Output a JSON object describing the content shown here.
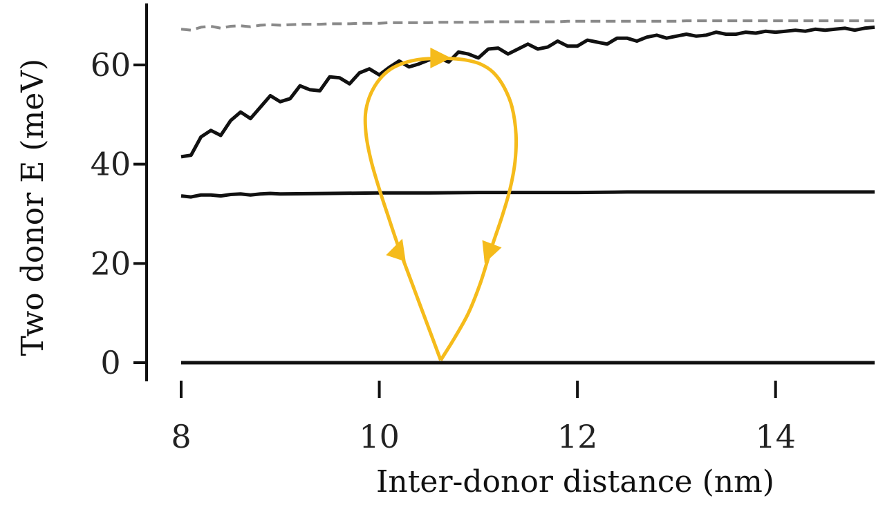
{
  "chart_data": {
    "type": "line",
    "xlabel": "Inter-donor distance (nm)",
    "ylabel": "Two donor E (meV)",
    "xlim": [
      8,
      15
    ],
    "ylim": [
      -3,
      72
    ],
    "x_ticks": [
      {
        "value": 8,
        "label": "8"
      },
      {
        "value": 10,
        "label": "10"
      },
      {
        "value": 12,
        "label": "12"
      },
      {
        "value": 14,
        "label": "14"
      }
    ],
    "y_ticks": [
      {
        "value": 0,
        "label": "0"
      },
      {
        "value": 20,
        "label": "20"
      },
      {
        "value": 40,
        "label": "40"
      },
      {
        "value": 60,
        "label": "60"
      }
    ],
    "grid": false,
    "legend": "none",
    "series": [
      {
        "style": "solid",
        "color": "#111111",
        "x": [
          8.0,
          8.1,
          8.2,
          8.3,
          8.4,
          8.5,
          8.6,
          8.7,
          8.8,
          8.9,
          9.0,
          9.1,
          9.2,
          9.3,
          9.4,
          9.5,
          9.6,
          9.7,
          9.8,
          9.9,
          10.0,
          10.1,
          10.2,
          10.3,
          10.4,
          10.5,
          10.6,
          10.7,
          10.8,
          10.9,
          11.0,
          11.1,
          11.2,
          11.3,
          11.4,
          11.5,
          11.6,
          11.7,
          11.8,
          11.9,
          12.0,
          12.1,
          12.2,
          12.3,
          12.4,
          12.5,
          12.6,
          12.7,
          12.8,
          12.9,
          13.0,
          13.1,
          13.2,
          13.3,
          13.4,
          13.5,
          13.6,
          13.7,
          13.8,
          13.9,
          14.0,
          14.1,
          14.2,
          14.3,
          14.4,
          14.5,
          14.6,
          14.7,
          14.8,
          14.9,
          15.0
        ],
        "y": [
          41.5,
          41.8,
          45.5,
          46.8,
          45.8,
          48.8,
          50.5,
          49.2,
          51.5,
          53.8,
          52.6,
          53.2,
          55.8,
          55.0,
          54.8,
          57.6,
          57.4,
          56.2,
          58.4,
          59.2,
          58.0,
          59.5,
          60.8,
          59.6,
          60.2,
          61.0,
          61.4,
          60.6,
          62.6,
          62.2,
          61.4,
          63.2,
          63.4,
          62.2,
          63.2,
          64.2,
          63.2,
          63.6,
          64.8,
          63.8,
          63.8,
          65.0,
          64.6,
          64.2,
          65.4,
          65.4,
          64.8,
          65.6,
          66.0,
          65.4,
          65.8,
          66.2,
          65.8,
          66.0,
          66.6,
          66.2,
          66.2,
          66.6,
          66.4,
          66.8,
          66.6,
          66.8,
          67.0,
          66.8,
          67.2,
          67.0,
          67.2,
          67.4,
          67.0,
          67.4,
          67.6
        ]
      },
      {
        "style": "dashed",
        "color": "#8a8a8a",
        "x": [
          8.0,
          8.1,
          8.2,
          8.3,
          8.4,
          8.5,
          8.6,
          8.7,
          8.8,
          8.9,
          9.0,
          9.1,
          9.2,
          9.3,
          9.4,
          9.5,
          9.6,
          9.7,
          9.8,
          9.9,
          10.0,
          10.1,
          10.2,
          10.3,
          10.4,
          10.5,
          10.6,
          10.7,
          10.8,
          10.9,
          11.0,
          11.1,
          11.2,
          11.3,
          11.4,
          11.5,
          11.6,
          11.7,
          11.8,
          11.9,
          12.0,
          12.1,
          12.2,
          12.3,
          12.4,
          12.5,
          12.6,
          12.7,
          12.8,
          12.9,
          13.0,
          13.1,
          13.2,
          13.3,
          13.4,
          13.5,
          13.6,
          13.7,
          13.8,
          13.9,
          14.0,
          14.1,
          14.2,
          14.3,
          14.4,
          14.5,
          14.6,
          14.7,
          14.8,
          14.9,
          15.0
        ],
        "y": [
          67.2,
          67.0,
          67.6,
          67.8,
          67.4,
          67.8,
          67.9,
          67.7,
          68.0,
          68.1,
          68.0,
          68.1,
          68.2,
          68.2,
          68.2,
          68.3,
          68.3,
          68.3,
          68.4,
          68.4,
          68.4,
          68.5,
          68.5,
          68.5,
          68.5,
          68.5,
          68.6,
          68.6,
          68.6,
          68.6,
          68.6,
          68.7,
          68.7,
          68.7,
          68.7,
          68.7,
          68.7,
          68.7,
          68.7,
          68.8,
          68.8,
          68.8,
          68.8,
          68.8,
          68.8,
          68.8,
          68.8,
          68.8,
          68.8,
          68.8,
          68.8,
          68.9,
          68.9,
          68.9,
          68.9,
          68.9,
          68.9,
          68.9,
          68.9,
          68.9,
          68.9,
          68.9,
          68.9,
          68.9,
          68.9,
          68.9,
          68.9,
          68.9,
          68.9,
          68.9,
          68.9
        ]
      },
      {
        "style": "solid",
        "color": "#111111",
        "x": [
          8.0,
          8.1,
          8.2,
          8.3,
          8.4,
          8.5,
          8.6,
          8.7,
          8.8,
          8.9,
          9.0,
          9.5,
          10.0,
          10.5,
          11.0,
          11.5,
          12.0,
          12.5,
          13.0,
          13.5,
          14.0,
          14.5,
          15.0
        ],
        "y": [
          33.6,
          33.4,
          33.8,
          33.8,
          33.6,
          33.9,
          34.0,
          33.8,
          34.0,
          34.1,
          34.0,
          34.1,
          34.2,
          34.2,
          34.3,
          34.3,
          34.3,
          34.4,
          34.4,
          34.4,
          34.4,
          34.4,
          34.4
        ]
      },
      {
        "style": "solid",
        "color": "#111111",
        "x": [
          8.0,
          15.0
        ],
        "y": [
          0.0,
          0.0
        ]
      }
    ],
    "annotation_loop": {
      "color": "#f5bb1b",
      "x": [
        10.62,
        10.48,
        10.33,
        10.2,
        10.09,
        10.0,
        9.92,
        9.87,
        9.86,
        9.9,
        9.98,
        10.09,
        10.22,
        10.37,
        10.52,
        10.62,
        10.72,
        10.87,
        11.02,
        11.15,
        11.26,
        11.34,
        11.38,
        11.37,
        11.32,
        11.24,
        11.13,
        11.02,
        10.9,
        10.76,
        10.62
      ],
      "y": [
        0.5,
        8.0,
        16.0,
        23.0,
        29.5,
        35.0,
        40.5,
        45.5,
        50.0,
        53.5,
        56.5,
        58.8,
        60.2,
        61.0,
        61.3,
        61.4,
        61.3,
        61.0,
        60.2,
        58.5,
        55.5,
        51.5,
        46.0,
        40.5,
        35.0,
        29.5,
        23.0,
        16.0,
        10.0,
        5.0,
        0.5
      ],
      "arrows": [
        {
          "x": 10.2,
          "y": 23.0,
          "direction": "up"
        },
        {
          "x": 10.62,
          "y": 61.4,
          "direction": "right"
        },
        {
          "x": 11.1,
          "y": 22.0,
          "direction": "down"
        }
      ]
    }
  }
}
